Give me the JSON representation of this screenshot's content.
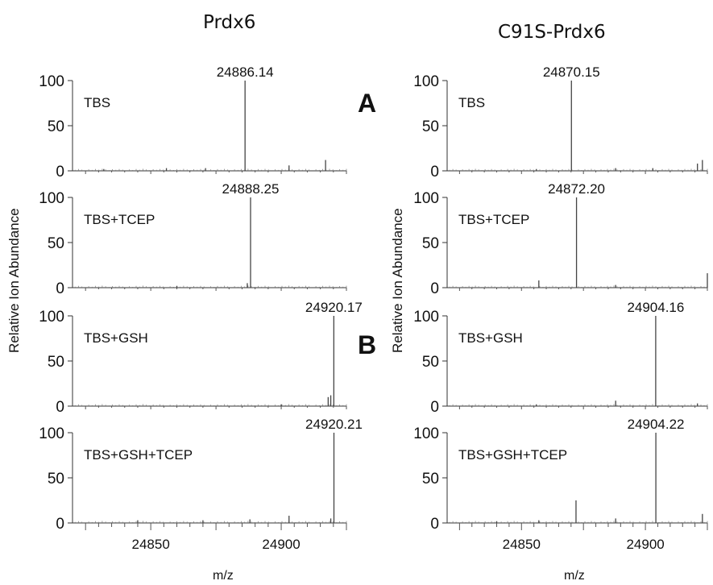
{
  "figure": {
    "left_title": "Prdx6",
    "right_title": "C91S-Prdx6",
    "ylabel": "Relative Ion Abundance",
    "xlabel": "m/z",
    "letter_a": "A",
    "letter_b": "B"
  },
  "chart_data": [
    {
      "type": "line",
      "column": "Prdx6",
      "title": "Prdx6",
      "xlabel": "m/z",
      "ylabel": "Relative Ion Abundance",
      "xlim": [
        24820,
        24925
      ],
      "ylim": [
        0,
        100
      ],
      "xticks": [
        24850,
        24900
      ],
      "yticks": [
        0,
        50,
        100
      ],
      "panels": [
        {
          "condition": "TBS",
          "peak_label": "24886.14",
          "peaks": [
            {
              "x": 24886.14,
              "y": 100
            },
            {
              "x": 24917,
              "y": 12
            },
            {
              "x": 24903,
              "y": 6
            },
            {
              "x": 24856,
              "y": 3
            },
            {
              "x": 24832,
              "y": 2
            },
            {
              "x": 24871,
              "y": 3
            }
          ]
        },
        {
          "condition": "TBS+TCEP",
          "peak_label": "24888.25",
          "peaks": [
            {
              "x": 24888.25,
              "y": 100
            },
            {
              "x": 24887,
              "y": 5
            },
            {
              "x": 24860,
              "y": 2
            }
          ]
        },
        {
          "condition": "TBS+GSH",
          "peak_label": "24920.17",
          "peaks": [
            {
              "x": 24920.17,
              "y": 100
            },
            {
              "x": 24919,
              "y": 12
            },
            {
              "x": 24918,
              "y": 10
            },
            {
              "x": 24900,
              "y": 2
            }
          ]
        },
        {
          "condition": "TBS+GSH+TCEP",
          "peak_label": "24920.21",
          "peaks": [
            {
              "x": 24920.21,
              "y": 100
            },
            {
              "x": 24919,
              "y": 5
            },
            {
              "x": 24903,
              "y": 8
            },
            {
              "x": 24888,
              "y": 4
            },
            {
              "x": 24870,
              "y": 3
            },
            {
              "x": 24845,
              "y": 3
            }
          ]
        }
      ]
    },
    {
      "type": "line",
      "column": "C91S-Prdx6",
      "title": "C91S-Prdx6",
      "xlabel": "m/z",
      "ylabel": "Relative Ion Abundance",
      "xlim": [
        24820,
        24925
      ],
      "ylim": [
        0,
        100
      ],
      "xticks": [
        24850,
        24900
      ],
      "yticks": [
        0,
        50,
        100
      ],
      "panels": [
        {
          "condition": "TBS",
          "peak_label": "24870.15",
          "peaks": [
            {
              "x": 24870.15,
              "y": 100
            },
            {
              "x": 24923,
              "y": 12
            },
            {
              "x": 24921,
              "y": 8
            },
            {
              "x": 24903,
              "y": 3
            },
            {
              "x": 24888,
              "y": 3
            },
            {
              "x": 24856,
              "y": 2
            }
          ]
        },
        {
          "condition": "TBS+TCEP",
          "peak_label": "24872.20",
          "peaks": [
            {
              "x": 24872.2,
              "y": 100
            },
            {
              "x": 24925,
              "y": 16
            },
            {
              "x": 24857,
              "y": 8
            },
            {
              "x": 24888,
              "y": 3
            }
          ]
        },
        {
          "condition": "TBS+GSH",
          "peak_label": "24904.16",
          "peaks": [
            {
              "x": 24904.16,
              "y": 100
            },
            {
              "x": 24888,
              "y": 6
            },
            {
              "x": 24921,
              "y": 3
            },
            {
              "x": 24856,
              "y": 2
            }
          ]
        },
        {
          "condition": "TBS+GSH+TCEP",
          "peak_label": "24904.22",
          "peaks": [
            {
              "x": 24904.22,
              "y": 100
            },
            {
              "x": 24872,
              "y": 25
            },
            {
              "x": 24923,
              "y": 10
            },
            {
              "x": 24888,
              "y": 5
            },
            {
              "x": 24857,
              "y": 3
            },
            {
              "x": 24840,
              "y": 2
            }
          ]
        }
      ]
    }
  ]
}
